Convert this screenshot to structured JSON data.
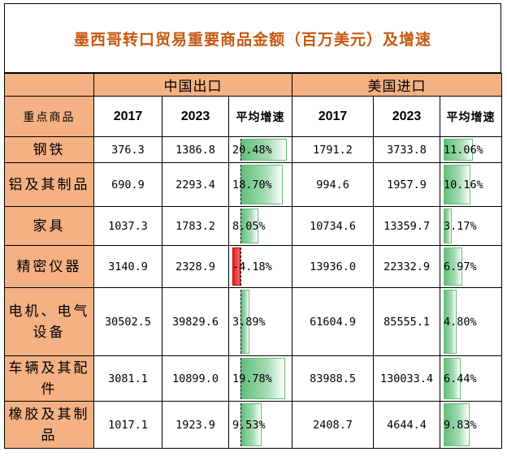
{
  "title": "墨西哥转口贸易重要商品金额（百万美元）及增速",
  "groups": {
    "china": "中国出口",
    "usa": "美国进口"
  },
  "columns": {
    "category": "重点商品",
    "y2017": "2017",
    "y2023": "2023",
    "rate": "平均增速"
  },
  "rows": [
    {
      "name": "钢铁",
      "cn2017": "376.3",
      "cn2023": "1386.8",
      "cnRate": "20.48%",
      "cnRateVal": 20.48,
      "us2017": "1791.2",
      "us2023": "3733.8",
      "usRate": "11.06%",
      "usRateVal": 11.06
    },
    {
      "name": "铝及其制品",
      "cn2017": "690.9",
      "cn2023": "2293.4",
      "cnRate": "18.70%",
      "cnRateVal": 18.7,
      "us2017": "994.6",
      "us2023": "1957.9",
      "usRate": "10.16%",
      "usRateVal": 10.16
    },
    {
      "name": "家具",
      "cn2017": "1037.3",
      "cn2023": "1783.2",
      "cnRate": "8.05%",
      "cnRateVal": 8.05,
      "us2017": "10734.6",
      "us2023": "13359.7",
      "usRate": "3.17%",
      "usRateVal": 3.17
    },
    {
      "name": "精密仪器",
      "cn2017": "3140.9",
      "cn2023": "2328.9",
      "cnRate": "-4.18%",
      "cnRateVal": -4.18,
      "us2017": "13936.0",
      "us2023": "22332.9",
      "usRate": "6.97%",
      "usRateVal": 6.97
    },
    {
      "name": "电机、电气设备",
      "cn2017": "30502.5",
      "cn2023": "39829.6",
      "cnRate": "3.89%",
      "cnRateVal": 3.89,
      "us2017": "61604.9",
      "us2023": "85555.1",
      "usRate": "4.80%",
      "usRateVal": 4.8
    },
    {
      "name": "车辆及其配件",
      "cn2017": "3081.1",
      "cn2023": "10899.0",
      "cnRate": "19.78%",
      "cnRateVal": 19.78,
      "us2017": "83988.5",
      "us2023": "130033.4",
      "usRate": "6.44%",
      "usRateVal": 6.44
    },
    {
      "name": "橡胶及其制品",
      "cn2017": "1017.1",
      "cn2023": "1923.9",
      "cnRate": "9.53%",
      "cnRateVal": 9.53,
      "us2017": "2408.7",
      "us2023": "4644.4",
      "usRate": "9.83%",
      "usRateVal": 9.83
    }
  ],
  "colors": {
    "header_fill": "#f4b183",
    "title_color": "#c65911",
    "bar_positive": "#63be7b",
    "bar_negative": "#f8696b"
  }
}
